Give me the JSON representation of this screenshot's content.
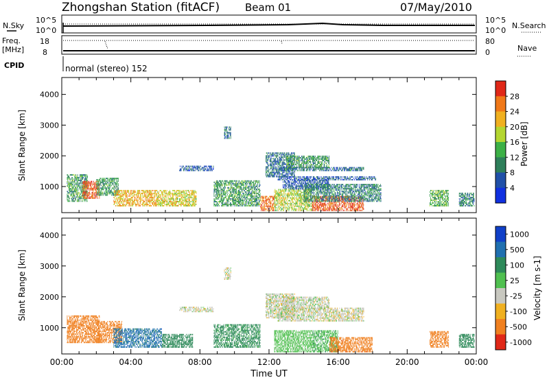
{
  "header": {
    "station": "Zhongshan Station (fitACF)",
    "beam": "Beam 01",
    "date": "07/May/2010"
  },
  "status": {
    "nsky_label": "N.Sky",
    "nsky_ticks": [
      "10^5",
      "10^0"
    ],
    "nsearch_label": "N.Search",
    "nsearch_ticks": [
      "10^5",
      "10^0"
    ],
    "freq_label_1": "Freq.",
    "freq_label_2": "[MHz]",
    "freq_ticks": [
      "18",
      "8"
    ],
    "nave_label": "Nave",
    "nave_ticks": [
      "80",
      "0"
    ],
    "cpid_label": "CPID",
    "cpid_value": "normal (stereo) 152"
  },
  "colors": {
    "power_scale": [
      "#1030e0",
      "#2050a8",
      "#2e7f5a",
      "#3cb046",
      "#b4d630",
      "#f0b020",
      "#f07818",
      "#e02818"
    ],
    "velocity_scale": [
      "#1040c8",
      "#2070b0",
      "#2e8a5a",
      "#50c050",
      "#c8c8c0",
      "#f0b020",
      "#f08020",
      "#e02818"
    ]
  },
  "chart_data": [
    {
      "type": "heatmap",
      "panel": "power",
      "ylabel": "Slant Range [km]",
      "xlabel": "",
      "yticks": [
        "1000",
        "2000",
        "3000",
        "4000"
      ],
      "ylim": [
        150,
        4550
      ],
      "xlim": [
        0,
        24
      ],
      "colorbar_label": "Power [dB]",
      "colorbar_ticks": [
        "4",
        "8",
        "12",
        "16",
        "20",
        "24",
        "28"
      ],
      "colorbar_range": [
        0,
        32
      ],
      "regions": [
        {
          "t0": 0.3,
          "t1": 1.5,
          "r0": 500,
          "r1": 1400,
          "level": 12
        },
        {
          "t0": 1.2,
          "t1": 2.2,
          "r0": 600,
          "r1": 1200,
          "level": 28
        },
        {
          "t0": 2.0,
          "t1": 3.3,
          "r0": 700,
          "r1": 1300,
          "level": 12
        },
        {
          "t0": 3.0,
          "t1": 5.5,
          "r0": 350,
          "r1": 900,
          "level": 22
        },
        {
          "t0": 5.5,
          "t1": 7.8,
          "r0": 350,
          "r1": 900,
          "level": 20
        },
        {
          "t0": 6.8,
          "t1": 8.8,
          "r0": 1500,
          "r1": 1700,
          "level": 6
        },
        {
          "t0": 8.8,
          "t1": 11.5,
          "r0": 350,
          "r1": 1200,
          "level": 12
        },
        {
          "t0": 9.4,
          "t1": 9.8,
          "r0": 2550,
          "r1": 2950,
          "level": 8
        },
        {
          "t0": 11.5,
          "t1": 12.3,
          "r0": 200,
          "r1": 700,
          "level": 26
        },
        {
          "t0": 11.8,
          "t1": 13.5,
          "r0": 1300,
          "r1": 2100,
          "level": 8
        },
        {
          "t0": 12.5,
          "t1": 17.5,
          "r0": 1500,
          "r1": 1650,
          "level": 8
        },
        {
          "t0": 13.0,
          "t1": 15.5,
          "r0": 1600,
          "r1": 2000,
          "level": 12
        },
        {
          "t0": 12.5,
          "t1": 18.2,
          "r0": 1200,
          "r1": 1350,
          "level": 6
        },
        {
          "t0": 12.8,
          "t1": 15.5,
          "r0": 900,
          "r1": 1200,
          "level": 6
        },
        {
          "t0": 12.3,
          "t1": 14.5,
          "r0": 200,
          "r1": 900,
          "level": 18
        },
        {
          "t0": 14.5,
          "t1": 17.5,
          "r0": 200,
          "r1": 700,
          "level": 28
        },
        {
          "t0": 14.0,
          "t1": 18.5,
          "r0": 500,
          "r1": 1100,
          "level": 10
        },
        {
          "t0": 21.3,
          "t1": 22.4,
          "r0": 350,
          "r1": 900,
          "level": 14
        },
        {
          "t0": 23.0,
          "t1": 23.9,
          "r0": 350,
          "r1": 800,
          "level": 10
        }
      ]
    },
    {
      "type": "heatmap",
      "panel": "velocity",
      "ylabel": "Slant Range [km]",
      "xlabel": "Time UT",
      "yticks": [
        "1000",
        "2000",
        "3000",
        "4000"
      ],
      "xticks": [
        "00:00",
        "04:00",
        "08:00",
        "12:00",
        "16:00",
        "20:00",
        "00:00"
      ],
      "ylim": [
        150,
        4550
      ],
      "xlim": [
        0,
        24
      ],
      "colorbar_label": "Velocity [m s-1]",
      "colorbar_ticks": [
        "1000",
        "500",
        "100",
        "25",
        "-25",
        "-100",
        "-500",
        "-1000"
      ],
      "colorbar_range": [
        -1500,
        1500
      ],
      "regions": [
        {
          "t0": 0.3,
          "t1": 2.2,
          "r0": 500,
          "r1": 1400,
          "level": -300
        },
        {
          "t0": 2.0,
          "t1": 3.5,
          "r0": 500,
          "r1": 1200,
          "level": -200
        },
        {
          "t0": 3.0,
          "t1": 5.8,
          "r0": 350,
          "r1": 1000,
          "level": 700
        },
        {
          "t0": 5.8,
          "t1": 7.6,
          "r0": 350,
          "r1": 800,
          "level": 300
        },
        {
          "t0": 6.8,
          "t1": 8.8,
          "r0": 1500,
          "r1": 1700,
          "level": 0
        },
        {
          "t0": 8.8,
          "t1": 11.5,
          "r0": 350,
          "r1": 1100,
          "level": 150
        },
        {
          "t0": 9.4,
          "t1": 9.8,
          "r0": 2550,
          "r1": 2950,
          "level": 0
        },
        {
          "t0": 11.8,
          "t1": 13.5,
          "r0": 1300,
          "r1": 2100,
          "level": 0
        },
        {
          "t0": 12.5,
          "t1": 17.5,
          "r0": 1200,
          "r1": 1650,
          "level": 0
        },
        {
          "t0": 12.8,
          "t1": 15.5,
          "r0": 1600,
          "r1": 2000,
          "level": 0
        },
        {
          "t0": 12.3,
          "t1": 14.5,
          "r0": 200,
          "r1": 900,
          "level": 60
        },
        {
          "t0": 14.5,
          "t1": 16.0,
          "r0": 200,
          "r1": 900,
          "level": 80
        },
        {
          "t0": 15.5,
          "t1": 18.0,
          "r0": 200,
          "r1": 700,
          "level": -350
        },
        {
          "t0": 21.3,
          "t1": 22.4,
          "r0": 350,
          "r1": 900,
          "level": -300
        },
        {
          "t0": 23.0,
          "t1": 23.9,
          "r0": 350,
          "r1": 800,
          "level": 200
        }
      ]
    }
  ]
}
